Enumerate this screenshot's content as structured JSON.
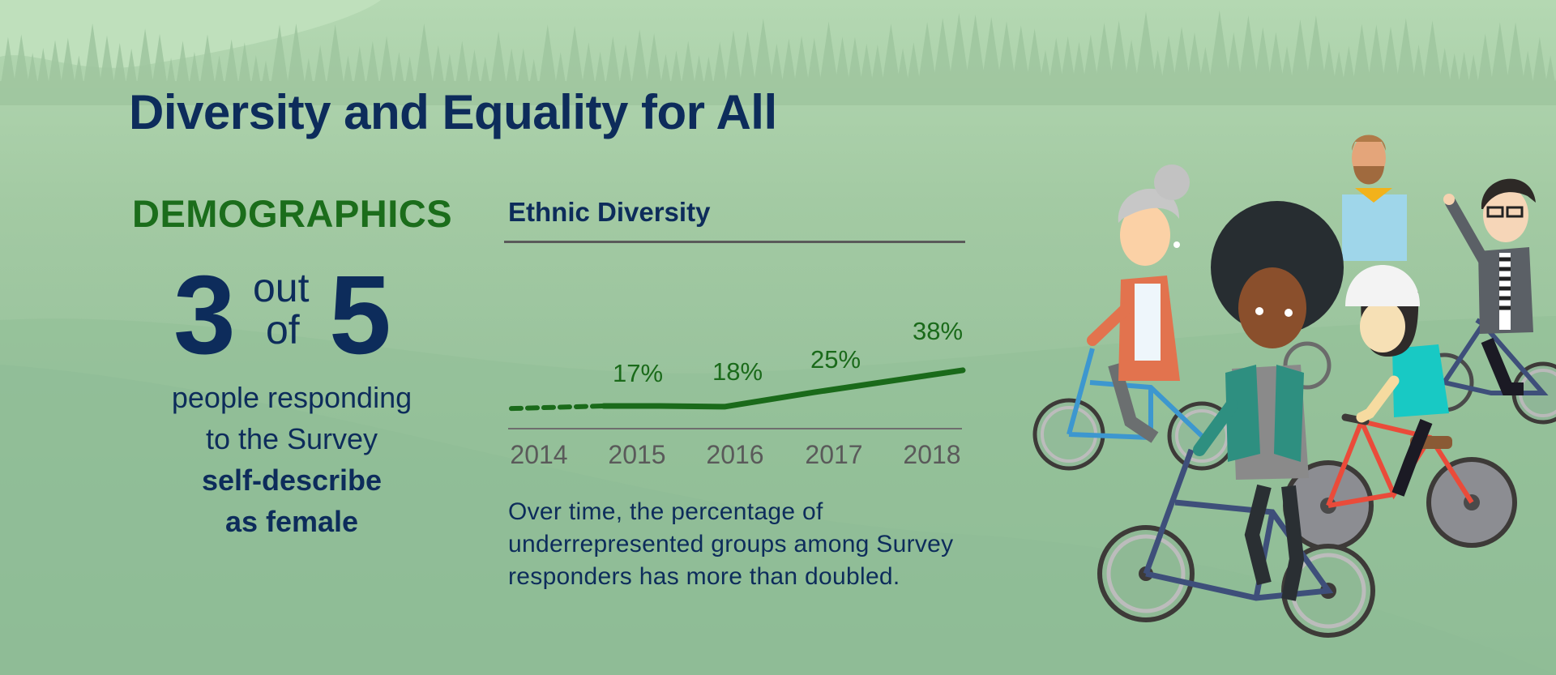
{
  "header": {
    "title": "Diversity and Equality for All"
  },
  "demographics": {
    "heading": "DEMOGRAPHICS",
    "numerator": "3",
    "out_word": "out",
    "of_word": "of",
    "denominator": "5",
    "line1": "people responding",
    "line2": "to the Survey",
    "line3": "self-describe",
    "line4": "as female"
  },
  "chart_data": {
    "type": "line",
    "title": "Ethnic Diversity",
    "categories": [
      "2014",
      "2015",
      "2016",
      "2017",
      "2018"
    ],
    "values": [
      null,
      17,
      18,
      25,
      38
    ],
    "data_labels": [
      "",
      "17%",
      "18%",
      "25%",
      "38%"
    ],
    "unit": "%",
    "grid": false,
    "line_color": "#1a6a1a",
    "first_segment_style": "dashed"
  },
  "caption": {
    "line1": "Over time, the percentage of",
    "line2": "underrepresented groups among Survey",
    "line3": "responders has more than doubled."
  },
  "illustration": {
    "subject": "cyclists-illustration"
  },
  "colors": {
    "navy": "#0d2c5b",
    "green": "#1b6d1b",
    "background": "#9fc6a0"
  }
}
